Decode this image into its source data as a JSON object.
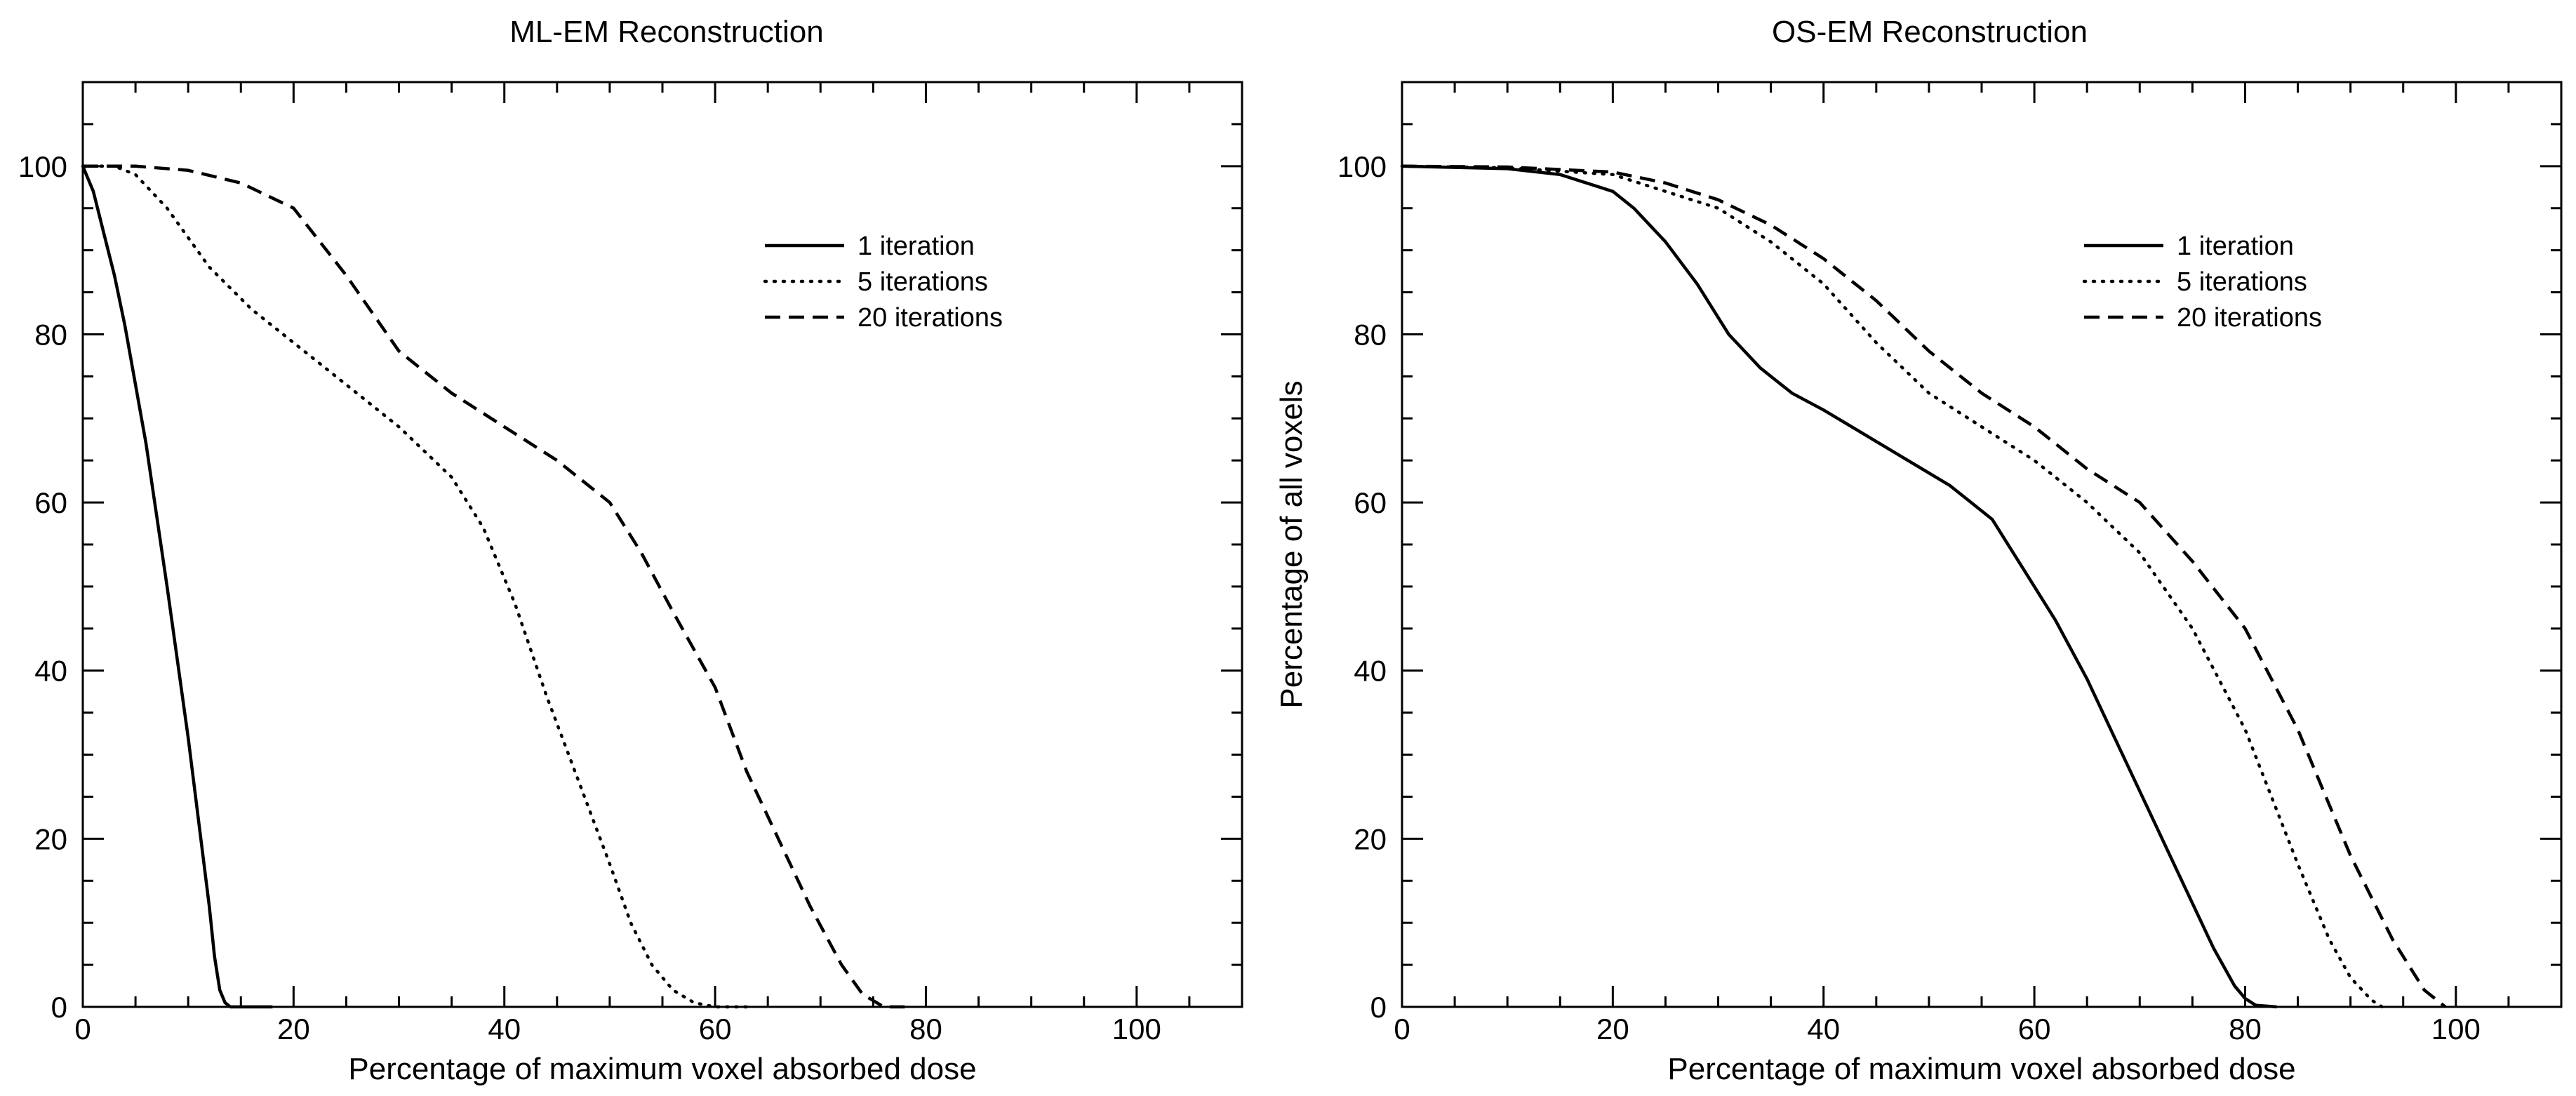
{
  "colors": {
    "ink": "#000000",
    "background": "#ffffff"
  },
  "chart_data": [
    {
      "type": "line",
      "title": "ML-EM Reconstruction",
      "xlabel": "Percentage of maximum voxel absorbed dose",
      "ylabel": "",
      "xlim": [
        0,
        110
      ],
      "ylim": [
        0,
        110
      ],
      "xticks": [
        0,
        20,
        40,
        60,
        80,
        100
      ],
      "yticks": [
        0,
        20,
        40,
        60,
        80,
        100
      ],
      "xtick_labels": [
        "0",
        "20",
        "40",
        "60",
        "80",
        "100"
      ],
      "ytick_labels": [
        "0",
        "20",
        "40",
        "60",
        "80",
        "100"
      ],
      "legend_position": "upper-right",
      "series": [
        {
          "name": "1 iteration",
          "style": "solid",
          "x": [
            0,
            1,
            2,
            3,
            4,
            6,
            8,
            10,
            11,
            12,
            12.5,
            13,
            13.5,
            14,
            15,
            18
          ],
          "y": [
            100,
            97,
            92,
            87,
            81,
            67,
            50,
            32,
            22,
            12,
            6,
            2,
            0.5,
            0,
            0,
            0
          ]
        },
        {
          "name": "5 iterations",
          "style": "dotted",
          "x": [
            0,
            3,
            5,
            8,
            12,
            16,
            20,
            25,
            30,
            35,
            38,
            41,
            44,
            47,
            50,
            52,
            54,
            56,
            58,
            60,
            63
          ],
          "y": [
            100,
            100,
            99,
            95,
            88,
            83,
            79,
            74,
            69,
            63,
            57,
            48,
            37,
            27,
            17,
            10,
            5,
            2,
            0.5,
            0,
            0
          ]
        },
        {
          "name": "20 iterations",
          "style": "dashed",
          "x": [
            0,
            5,
            10,
            15,
            20,
            25,
            30,
            35,
            40,
            45,
            50,
            53,
            56,
            60,
            63,
            66,
            69,
            72,
            74,
            76,
            78
          ],
          "y": [
            100,
            100,
            99.5,
            98,
            95,
            87,
            78,
            73,
            69,
            65,
            60,
            54,
            47,
            38,
            28,
            20,
            12,
            5,
            1.5,
            0,
            0
          ]
        }
      ]
    },
    {
      "type": "line",
      "title": "OS-EM Reconstruction",
      "xlabel": "Percentage of maximum voxel absorbed dose",
      "ylabel": "Percentage of all voxels",
      "xlim": [
        0,
        110
      ],
      "ylim": [
        0,
        110
      ],
      "xticks": [
        0,
        20,
        40,
        60,
        80,
        100
      ],
      "yticks": [
        0,
        20,
        40,
        60,
        80,
        100
      ],
      "xtick_labels": [
        "0",
        "20",
        "40",
        "60",
        "80",
        "100"
      ],
      "ytick_labels": [
        "0",
        "20",
        "40",
        "60",
        "80",
        "100"
      ],
      "legend_position": "upper-right",
      "series": [
        {
          "name": "1 iteration",
          "style": "solid",
          "x": [
            0,
            10,
            15,
            20,
            22,
            25,
            28,
            31,
            34,
            37,
            40,
            44,
            48,
            52,
            56,
            59,
            62,
            65,
            68,
            71,
            74,
            77,
            79,
            80,
            81,
            83
          ],
          "y": [
            100,
            99.7,
            99,
            97,
            95,
            91,
            86,
            80,
            76,
            73,
            71,
            68,
            65,
            62,
            58,
            52,
            46,
            39,
            31,
            23,
            15,
            7,
            2.5,
            1,
            0.2,
            0
          ]
        },
        {
          "name": "5 iterations",
          "style": "dotted",
          "x": [
            0,
            10,
            20,
            25,
            30,
            35,
            40,
            45,
            50,
            55,
            60,
            65,
            70,
            75,
            80,
            85,
            88,
            90,
            92,
            93
          ],
          "y": [
            100,
            99.8,
            99,
            97,
            95,
            91,
            86,
            79,
            73,
            69,
            65,
            60,
            54,
            45,
            33,
            17,
            8,
            3.5,
            0.8,
            0
          ]
        },
        {
          "name": "20 iterations",
          "style": "dashed",
          "x": [
            0,
            10,
            20,
            25,
            30,
            35,
            40,
            45,
            50,
            55,
            60,
            65,
            70,
            75,
            80,
            85,
            90,
            94,
            97,
            99
          ],
          "y": [
            100,
            99.9,
            99.3,
            98,
            96,
            93,
            89,
            84,
            78,
            73,
            69,
            64,
            60,
            53,
            45,
            33,
            18,
            8,
            2,
            0
          ]
        }
      ]
    }
  ]
}
